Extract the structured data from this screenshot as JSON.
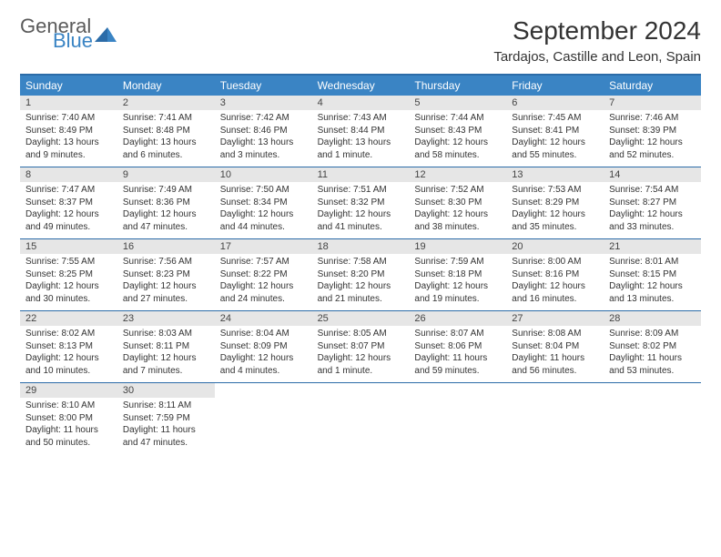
{
  "logo": {
    "general": "General",
    "blue": "Blue"
  },
  "title": "September 2024",
  "location": "Tardajos, Castille and Leon, Spain",
  "colors": {
    "header_bg": "#3a84c4",
    "header_text": "#ffffff",
    "border": "#2c6ca8",
    "daynum_bg": "#e6e6e6",
    "text": "#333333",
    "logo_gray": "#5a5a5a",
    "logo_blue": "#3a84c4"
  },
  "weekdays": [
    "Sunday",
    "Monday",
    "Tuesday",
    "Wednesday",
    "Thursday",
    "Friday",
    "Saturday"
  ],
  "weeks": [
    [
      {
        "n": "1",
        "sr": "7:40 AM",
        "ss": "8:49 PM",
        "dl": "13 hours and 9 minutes."
      },
      {
        "n": "2",
        "sr": "7:41 AM",
        "ss": "8:48 PM",
        "dl": "13 hours and 6 minutes."
      },
      {
        "n": "3",
        "sr": "7:42 AM",
        "ss": "8:46 PM",
        "dl": "13 hours and 3 minutes."
      },
      {
        "n": "4",
        "sr": "7:43 AM",
        "ss": "8:44 PM",
        "dl": "13 hours and 1 minute."
      },
      {
        "n": "5",
        "sr": "7:44 AM",
        "ss": "8:43 PM",
        "dl": "12 hours and 58 minutes."
      },
      {
        "n": "6",
        "sr": "7:45 AM",
        "ss": "8:41 PM",
        "dl": "12 hours and 55 minutes."
      },
      {
        "n": "7",
        "sr": "7:46 AM",
        "ss": "8:39 PM",
        "dl": "12 hours and 52 minutes."
      }
    ],
    [
      {
        "n": "8",
        "sr": "7:47 AM",
        "ss": "8:37 PM",
        "dl": "12 hours and 49 minutes."
      },
      {
        "n": "9",
        "sr": "7:49 AM",
        "ss": "8:36 PM",
        "dl": "12 hours and 47 minutes."
      },
      {
        "n": "10",
        "sr": "7:50 AM",
        "ss": "8:34 PM",
        "dl": "12 hours and 44 minutes."
      },
      {
        "n": "11",
        "sr": "7:51 AM",
        "ss": "8:32 PM",
        "dl": "12 hours and 41 minutes."
      },
      {
        "n": "12",
        "sr": "7:52 AM",
        "ss": "8:30 PM",
        "dl": "12 hours and 38 minutes."
      },
      {
        "n": "13",
        "sr": "7:53 AM",
        "ss": "8:29 PM",
        "dl": "12 hours and 35 minutes."
      },
      {
        "n": "14",
        "sr": "7:54 AM",
        "ss": "8:27 PM",
        "dl": "12 hours and 33 minutes."
      }
    ],
    [
      {
        "n": "15",
        "sr": "7:55 AM",
        "ss": "8:25 PM",
        "dl": "12 hours and 30 minutes."
      },
      {
        "n": "16",
        "sr": "7:56 AM",
        "ss": "8:23 PM",
        "dl": "12 hours and 27 minutes."
      },
      {
        "n": "17",
        "sr": "7:57 AM",
        "ss": "8:22 PM",
        "dl": "12 hours and 24 minutes."
      },
      {
        "n": "18",
        "sr": "7:58 AM",
        "ss": "8:20 PM",
        "dl": "12 hours and 21 minutes."
      },
      {
        "n": "19",
        "sr": "7:59 AM",
        "ss": "8:18 PM",
        "dl": "12 hours and 19 minutes."
      },
      {
        "n": "20",
        "sr": "8:00 AM",
        "ss": "8:16 PM",
        "dl": "12 hours and 16 minutes."
      },
      {
        "n": "21",
        "sr": "8:01 AM",
        "ss": "8:15 PM",
        "dl": "12 hours and 13 minutes."
      }
    ],
    [
      {
        "n": "22",
        "sr": "8:02 AM",
        "ss": "8:13 PM",
        "dl": "12 hours and 10 minutes."
      },
      {
        "n": "23",
        "sr": "8:03 AM",
        "ss": "8:11 PM",
        "dl": "12 hours and 7 minutes."
      },
      {
        "n": "24",
        "sr": "8:04 AM",
        "ss": "8:09 PM",
        "dl": "12 hours and 4 minutes."
      },
      {
        "n": "25",
        "sr": "8:05 AM",
        "ss": "8:07 PM",
        "dl": "12 hours and 1 minute."
      },
      {
        "n": "26",
        "sr": "8:07 AM",
        "ss": "8:06 PM",
        "dl": "11 hours and 59 minutes."
      },
      {
        "n": "27",
        "sr": "8:08 AM",
        "ss": "8:04 PM",
        "dl": "11 hours and 56 minutes."
      },
      {
        "n": "28",
        "sr": "8:09 AM",
        "ss": "8:02 PM",
        "dl": "11 hours and 53 minutes."
      }
    ],
    [
      {
        "n": "29",
        "sr": "8:10 AM",
        "ss": "8:00 PM",
        "dl": "11 hours and 50 minutes."
      },
      {
        "n": "30",
        "sr": "8:11 AM",
        "ss": "7:59 PM",
        "dl": "11 hours and 47 minutes."
      },
      null,
      null,
      null,
      null,
      null
    ]
  ],
  "labels": {
    "sunrise": "Sunrise:",
    "sunset": "Sunset:",
    "daylight": "Daylight:"
  }
}
